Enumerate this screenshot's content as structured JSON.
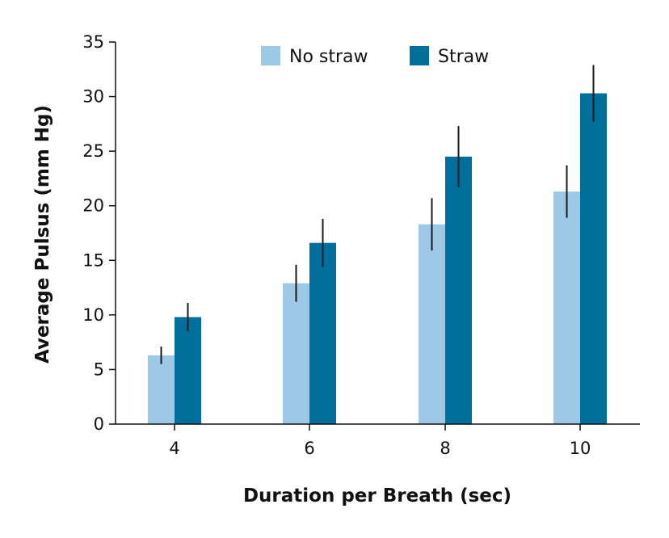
{
  "chart_data": {
    "type": "bar",
    "categories": [
      "4",
      "6",
      "8",
      "10"
    ],
    "series": [
      {
        "name": "No straw",
        "color": "#9dc8e6",
        "values": [
          6.3,
          12.9,
          18.3,
          21.3
        ],
        "error": [
          0.8,
          1.7,
          2.4,
          2.4
        ]
      },
      {
        "name": "Straw",
        "color": "#006f9c",
        "values": [
          9.8,
          16.6,
          24.5,
          30.3
        ],
        "error": [
          1.3,
          2.2,
          2.8,
          2.6
        ]
      }
    ],
    "xlabel": "Duration per Breath (sec)",
    "ylabel": "Average Pulsus (mm Hg)",
    "ylim": [
      0,
      35
    ],
    "yticks": [
      0,
      5,
      10,
      15,
      20,
      25,
      30,
      35
    ],
    "grid": false,
    "legend_position": "top"
  }
}
